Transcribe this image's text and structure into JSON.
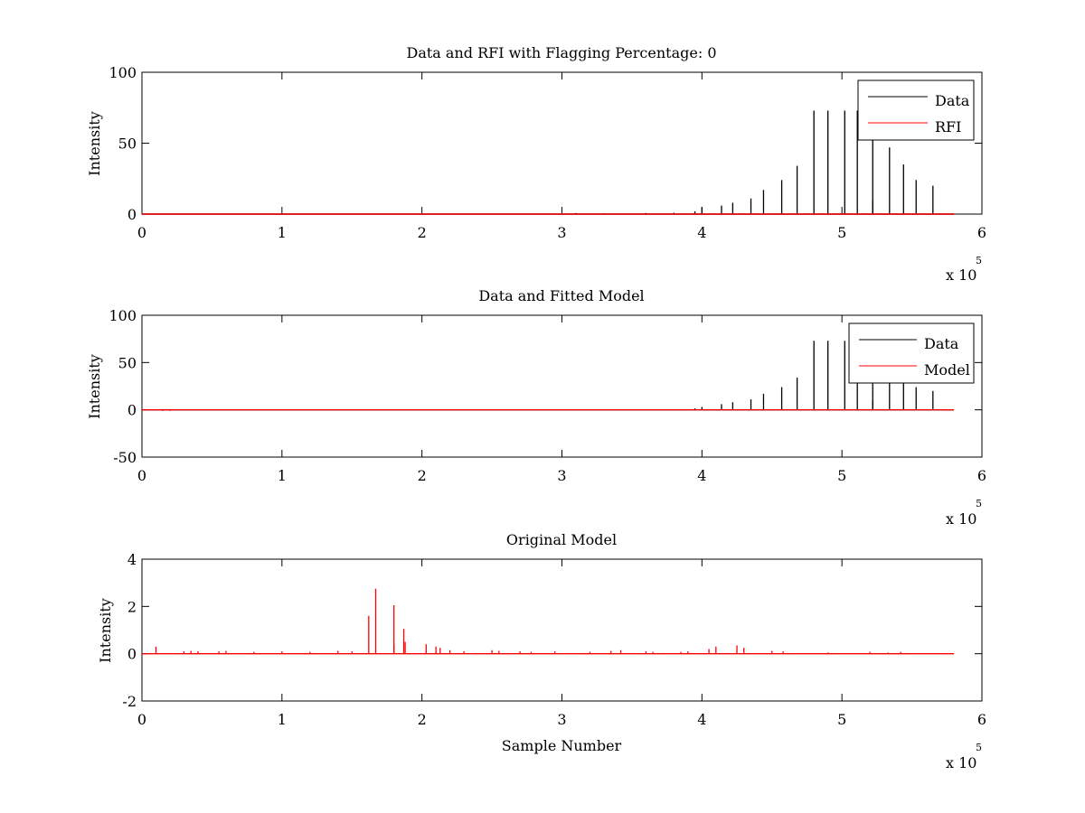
{
  "figure": {
    "background": "#ffffff"
  },
  "colors": {
    "data": "#000000",
    "rfi": "#ff0000",
    "model": "#ff0000",
    "axes": "#000000"
  },
  "chart_data": [
    {
      "type": "line",
      "title": "Data and RFI with Flagging Percentage: 0",
      "xlabel": "",
      "ylabel": "Intensity",
      "xlim": [
        0,
        6
      ],
      "ylim": [
        0,
        100
      ],
      "xticks": [
        0,
        1,
        2,
        3,
        4,
        5,
        6
      ],
      "yticks": [
        0,
        50,
        100
      ],
      "x_multiplier": {
        "base": "x 10",
        "exponent": "5"
      },
      "grid": false,
      "legend": {
        "position": "top-right",
        "entries": [
          "Data",
          "RFI"
        ]
      },
      "baseline_end": 5.8,
      "series": [
        {
          "name": "Data",
          "color": "#000000",
          "peaks": [
            [
              2.7,
              0.4
            ],
            [
              2.95,
              0.5
            ],
            [
              3.1,
              0.8
            ],
            [
              3.3,
              0.6
            ],
            [
              3.6,
              0.8
            ],
            [
              3.8,
              1.0
            ],
            [
              3.95,
              2.0
            ],
            [
              4.0,
              5
            ],
            [
              4.14,
              6
            ],
            [
              4.22,
              8
            ],
            [
              4.35,
              11
            ],
            [
              4.44,
              17
            ],
            [
              4.57,
              24
            ],
            [
              4.68,
              34
            ],
            [
              4.8,
              73
            ],
            [
              4.9,
              73
            ],
            [
              5.02,
              73
            ],
            [
              5.11,
              73
            ],
            [
              5.22,
              10
            ],
            [
              5.22,
              55
            ],
            [
              5.34,
              47
            ],
            [
              5.44,
              35
            ],
            [
              5.53,
              24
            ],
            [
              5.65,
              20
            ]
          ]
        },
        {
          "name": "RFI",
          "color": "#ff0000",
          "peaks": []
        }
      ]
    },
    {
      "type": "line",
      "title": "Data and Fitted Model",
      "xlabel": "",
      "ylabel": "Intensity",
      "xlim": [
        0,
        6
      ],
      "ylim": [
        -50,
        100
      ],
      "xticks": [
        0,
        1,
        2,
        3,
        4,
        5,
        6
      ],
      "yticks": [
        -50,
        0,
        50,
        100
      ],
      "x_multiplier": {
        "base": "x 10",
        "exponent": "5"
      },
      "grid": false,
      "legend": {
        "position": "top-right",
        "entries": [
          "Data",
          "Model"
        ]
      },
      "baseline_end": 5.8,
      "series": [
        {
          "name": "Data",
          "color": "#000000",
          "peaks": [
            [
              0.15,
              -1
            ],
            [
              0.2,
              -1
            ],
            [
              3.95,
              1.5
            ],
            [
              4.0,
              3
            ],
            [
              4.14,
              6
            ],
            [
              4.22,
              8
            ],
            [
              4.35,
              11
            ],
            [
              4.44,
              17
            ],
            [
              4.57,
              24
            ],
            [
              4.68,
              34
            ],
            [
              4.8,
              73
            ],
            [
              4.9,
              73
            ],
            [
              5.02,
              73
            ],
            [
              5.11,
              73
            ],
            [
              5.22,
              10
            ],
            [
              5.22,
              55
            ],
            [
              5.34,
              47
            ],
            [
              5.44,
              35
            ],
            [
              5.53,
              24
            ],
            [
              5.65,
              20
            ]
          ]
        },
        {
          "name": "Model",
          "color": "#ff0000",
          "peaks": [
            [
              0.02,
              0.8
            ],
            [
              0.15,
              -1
            ]
          ]
        }
      ]
    },
    {
      "type": "line",
      "title": "Original Model",
      "xlabel": "Sample Number",
      "ylabel": "Intensity",
      "xlim": [
        0,
        6
      ],
      "ylim": [
        -2,
        4
      ],
      "xticks": [
        0,
        1,
        2,
        3,
        4,
        5,
        6
      ],
      "yticks": [
        -2,
        0,
        2,
        4
      ],
      "x_multiplier": {
        "base": "x 10",
        "exponent": "5"
      },
      "grid": false,
      "legend": null,
      "baseline_end": 5.8,
      "series": [
        {
          "name": "",
          "color": "#ff0000",
          "peaks": [
            [
              0.1,
              0.3
            ],
            [
              0.3,
              0.1
            ],
            [
              0.35,
              0.12
            ],
            [
              0.4,
              0.1
            ],
            [
              0.55,
              0.1
            ],
            [
              0.6,
              0.12
            ],
            [
              0.8,
              0.08
            ],
            [
              1.0,
              0.1
            ],
            [
              1.2,
              0.08
            ],
            [
              1.4,
              0.12
            ],
            [
              1.5,
              0.1
            ],
            [
              1.62,
              1.6
            ],
            [
              1.67,
              2.75
            ],
            [
              1.8,
              2.05
            ],
            [
              1.8,
              0.4
            ],
            [
              1.87,
              1.05
            ],
            [
              1.88,
              0.5
            ],
            [
              2.03,
              0.4
            ],
            [
              2.1,
              0.3
            ],
            [
              2.13,
              0.25
            ],
            [
              2.2,
              0.15
            ],
            [
              2.3,
              0.1
            ],
            [
              2.5,
              0.15
            ],
            [
              2.55,
              0.12
            ],
            [
              2.7,
              0.1
            ],
            [
              2.78,
              0.08
            ],
            [
              2.95,
              0.1
            ],
            [
              3.2,
              0.08
            ],
            [
              3.35,
              0.12
            ],
            [
              3.42,
              0.15
            ],
            [
              3.6,
              0.1
            ],
            [
              3.65,
              0.08
            ],
            [
              3.85,
              0.08
            ],
            [
              3.9,
              0.1
            ],
            [
              4.05,
              0.2
            ],
            [
              4.1,
              0.3
            ],
            [
              4.25,
              0.35
            ],
            [
              4.3,
              0.25
            ],
            [
              4.5,
              0.12
            ],
            [
              4.58,
              0.1
            ],
            [
              4.9,
              0.05
            ],
            [
              5.2,
              0.08
            ],
            [
              5.33,
              0.05
            ],
            [
              5.42,
              0.08
            ]
          ]
        }
      ]
    }
  ]
}
